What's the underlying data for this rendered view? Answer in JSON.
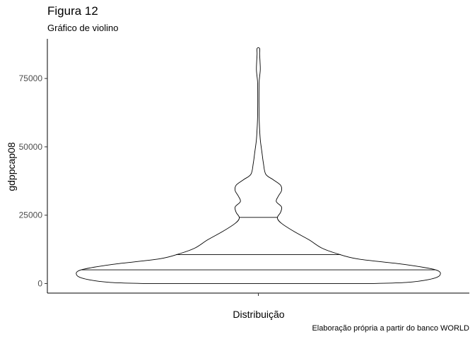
{
  "chart_data": {
    "type": "violin",
    "title": "Figura 12",
    "subtitle": "Gráfico de violino",
    "xlabel": "Distribuição",
    "ylabel": "gdppcap08",
    "caption": "Elaboração própria a partir do banco WORLD",
    "ylim": [
      -3500,
      89500
    ],
    "yticks": [
      0,
      25000,
      50000,
      75000
    ],
    "ytick_labels": [
      "0",
      "25000",
      "50000",
      "75000"
    ],
    "grid": false,
    "outline_color": "#000000",
    "fill_color": "#ffffff",
    "quantiles": [
      {
        "q": 0.25,
        "value": 5000
      },
      {
        "q": 0.5,
        "value": 10600
      },
      {
        "q": 0.75,
        "value": 24200
      }
    ],
    "density": {
      "y": [
        0,
        400,
        1500,
        3000,
        5000,
        7000,
        9000,
        11000,
        13000,
        16000,
        19000,
        22000,
        24000,
        26000,
        28000,
        30000,
        32000,
        34000,
        36000,
        38000,
        40000,
        44000,
        48000,
        52000,
        55000,
        60000,
        65000,
        70000,
        74000,
        78000,
        81000,
        84000,
        86000
      ],
      "half_width": [
        0.54,
        0.7,
        0.81,
        0.86,
        0.84,
        0.69,
        0.47,
        0.37,
        0.3,
        0.24,
        0.17,
        0.11,
        0.09,
        0.105,
        0.11,
        0.085,
        0.095,
        0.11,
        0.105,
        0.07,
        0.035,
        0.024,
        0.017,
        0.01,
        0.007,
        0.004,
        0.003,
        0.003,
        0.004,
        0.009,
        0.008,
        0.006,
        0.006
      ]
    }
  }
}
